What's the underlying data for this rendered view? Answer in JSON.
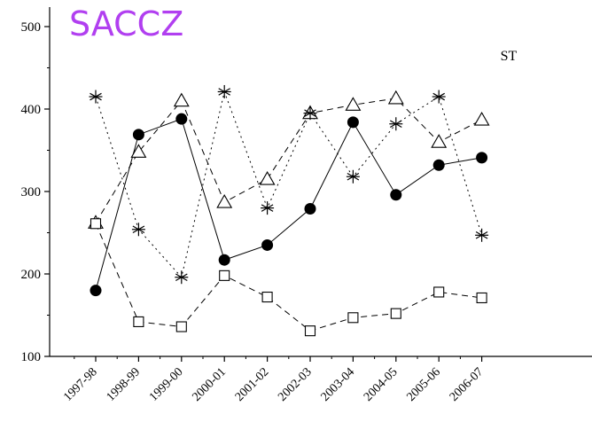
{
  "chart_data": {
    "type": "line",
    "title": "SACCZ",
    "annotation": "ST",
    "colors": {
      "title": "#b13ff0",
      "marks": "#000000"
    },
    "categories": [
      "1997-98",
      "1998-99",
      "1999-00",
      "2000-01",
      "2001-02",
      "2002-03",
      "2003-04",
      "2004-05",
      "2005-06",
      "2006-07"
    ],
    "ylim": [
      100,
      510
    ],
    "yticks": [
      100,
      200,
      300,
      400,
      500
    ],
    "grid": false,
    "series": [
      {
        "marker": "filled-circle",
        "line": "solid",
        "values": [
          180,
          369,
          388,
          217,
          235,
          279,
          384,
          296,
          332,
          341
        ]
      },
      {
        "marker": "open-triangle",
        "line": "dashed",
        "values": [
          262,
          348,
          410,
          287,
          315,
          395,
          405,
          413,
          360,
          387
        ]
      },
      {
        "marker": "asterisk",
        "line": "dotted",
        "values": [
          415,
          254,
          196,
          421,
          280,
          395,
          318,
          382,
          415,
          247
        ]
      },
      {
        "marker": "open-square",
        "line": "dashed",
        "values": [
          261,
          142,
          136,
          198,
          172,
          131,
          147,
          152,
          178,
          171
        ]
      }
    ]
  }
}
